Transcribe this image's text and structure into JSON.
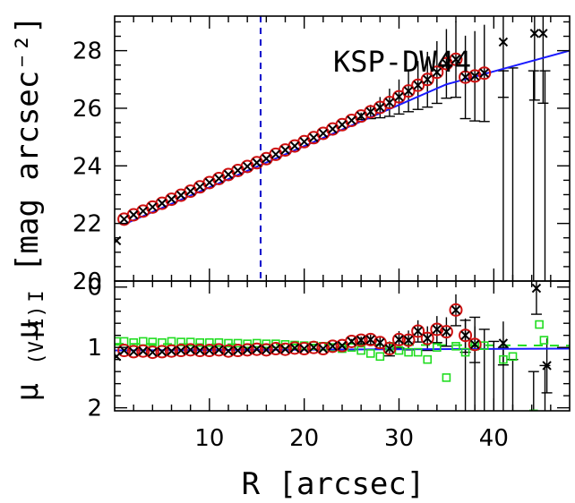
{
  "chart_data": {
    "type": "scatter",
    "title": "",
    "object_label": "KSP-DW44",
    "xlabel": "R [arcsec]",
    "xlim": [
      0,
      48
    ],
    "xticks": [
      10,
      20,
      30,
      40
    ],
    "panels": [
      {
        "id": "top",
        "ylabel_text": "μ",
        "ylabel_sub": "I",
        "ylabel_unit": "[mag arcsec⁻²]",
        "ylim": [
          29.2,
          20
        ],
        "yticks": [
          20,
          22,
          24,
          26,
          28
        ],
        "vline_x": 15.4,
        "fit_line": [
          [
            1,
            21.97
          ],
          [
            35,
            26.83
          ],
          [
            48,
            28.0
          ]
        ],
        "points": [
          [
            1,
            22.15
          ],
          [
            2,
            22.3
          ],
          [
            3,
            22.43
          ],
          [
            4,
            22.57
          ],
          [
            5,
            22.7
          ],
          [
            6,
            22.84
          ],
          [
            7,
            22.98
          ],
          [
            8,
            23.12
          ],
          [
            9,
            23.27
          ],
          [
            10,
            23.42
          ],
          [
            11,
            23.56
          ],
          [
            12,
            23.7
          ],
          [
            13,
            23.84
          ],
          [
            14,
            23.98
          ],
          [
            15,
            24.11
          ],
          [
            16,
            24.25
          ],
          [
            17,
            24.4
          ],
          [
            18,
            24.55
          ],
          [
            19,
            24.69
          ],
          [
            20,
            24.84
          ],
          [
            21,
            24.98
          ],
          [
            22,
            25.13
          ],
          [
            23,
            25.28
          ],
          [
            24,
            25.43
          ],
          [
            25,
            25.58
          ],
          [
            26,
            25.73
          ],
          [
            27,
            25.88
          ],
          [
            28,
            26.03
          ],
          [
            29,
            26.2
          ],
          [
            30,
            26.4
          ],
          [
            31,
            26.6
          ],
          [
            32,
            26.8
          ],
          [
            33,
            27.0
          ],
          [
            34,
            27.25
          ],
          [
            35,
            27.55
          ],
          [
            36,
            27.7
          ],
          [
            37,
            27.08
          ],
          [
            38,
            27.12
          ],
          [
            39,
            27.22
          ]
        ],
        "points_raw": [
          [
            0.2,
            21.4
          ],
          [
            1,
            22.15
          ],
          [
            2,
            22.3
          ],
          [
            3,
            22.43
          ],
          [
            4,
            22.57
          ],
          [
            5,
            22.7
          ],
          [
            6,
            22.84
          ],
          [
            7,
            22.98
          ],
          [
            8,
            23.12
          ],
          [
            9,
            23.27
          ],
          [
            10,
            23.42
          ],
          [
            11,
            23.56
          ],
          [
            12,
            23.7
          ],
          [
            13,
            23.84
          ],
          [
            14,
            23.98
          ],
          [
            15,
            24.11
          ],
          [
            16,
            24.25
          ],
          [
            17,
            24.4
          ],
          [
            18,
            24.55
          ],
          [
            19,
            24.69
          ],
          [
            20,
            24.84
          ],
          [
            21,
            24.98
          ],
          [
            22,
            25.13
          ],
          [
            23,
            25.28
          ],
          [
            24,
            25.43
          ],
          [
            25,
            25.58
          ],
          [
            26,
            25.73
          ],
          [
            27,
            25.88
          ],
          [
            28,
            26.03
          ],
          [
            29,
            26.2
          ],
          [
            30,
            26.4
          ],
          [
            31,
            26.6
          ],
          [
            32,
            26.8
          ],
          [
            33,
            27.0
          ],
          [
            34,
            27.25
          ],
          [
            35,
            27.55
          ],
          [
            36,
            27.7
          ],
          [
            37,
            27.08
          ],
          [
            38,
            27.12
          ],
          [
            39,
            27.22
          ],
          [
            41,
            28.3
          ],
          [
            44.3,
            28.6
          ],
          [
            45.2,
            28.6
          ]
        ]
      },
      {
        "id": "bottom",
        "ylabel_text": "μ",
        "ylabel_sub": "(V−I)",
        "ylim": [
          -0.1,
          2.05
        ],
        "yticks": [
          0,
          1,
          2
        ],
        "fit_line": [
          [
            0,
            1.05
          ],
          [
            48,
            1.02
          ]
        ],
        "dashed_line": [
          [
            0,
            0.94
          ],
          [
            48,
            0.97
          ]
        ],
        "points": [
          [
            1,
            1.05
          ],
          [
            2,
            1.07
          ],
          [
            3,
            1.06
          ],
          [
            4,
            1.08
          ],
          [
            5,
            1.07
          ],
          [
            6,
            1.06
          ],
          [
            7,
            1.05
          ],
          [
            8,
            1.04
          ],
          [
            9,
            1.05
          ],
          [
            10,
            1.05
          ],
          [
            11,
            1.04
          ],
          [
            12,
            1.06
          ],
          [
            13,
            1.05
          ],
          [
            14,
            1.04
          ],
          [
            15,
            1.03
          ],
          [
            16,
            1.04
          ],
          [
            17,
            1.02
          ],
          [
            18,
            1.03
          ],
          [
            19,
            1.01
          ],
          [
            20,
            1.02
          ],
          [
            21,
            1.0
          ],
          [
            22,
            1.02
          ],
          [
            23,
            0.98
          ],
          [
            24,
            0.97
          ],
          [
            25,
            0.9
          ],
          [
            26,
            0.88
          ],
          [
            27,
            0.87
          ],
          [
            28,
            0.92
          ],
          [
            29,
            1.02
          ],
          [
            30,
            0.87
          ],
          [
            31,
            0.88
          ],
          [
            32,
            0.73
          ],
          [
            33,
            0.85
          ],
          [
            34,
            0.7
          ],
          [
            35,
            0.74
          ],
          [
            36,
            0.38
          ],
          [
            37,
            0.8
          ],
          [
            38,
            0.95
          ]
        ],
        "points_raw": [
          [
            0.2,
            1.15
          ],
          [
            1,
            1.05
          ],
          [
            2,
            1.07
          ],
          [
            3,
            1.06
          ],
          [
            4,
            1.08
          ],
          [
            5,
            1.07
          ],
          [
            6,
            1.06
          ],
          [
            7,
            1.05
          ],
          [
            8,
            1.04
          ],
          [
            9,
            1.05
          ],
          [
            10,
            1.05
          ],
          [
            11,
            1.04
          ],
          [
            12,
            1.06
          ],
          [
            13,
            1.05
          ],
          [
            14,
            1.04
          ],
          [
            15,
            1.03
          ],
          [
            16,
            1.04
          ],
          [
            17,
            1.02
          ],
          [
            18,
            1.03
          ],
          [
            19,
            1.01
          ],
          [
            20,
            1.02
          ],
          [
            21,
            1.0
          ],
          [
            22,
            1.02
          ],
          [
            23,
            0.98
          ],
          [
            24,
            0.97
          ],
          [
            25,
            0.9
          ],
          [
            26,
            0.88
          ],
          [
            27,
            0.87
          ],
          [
            28,
            0.92
          ],
          [
            29,
            1.02
          ],
          [
            30,
            0.87
          ],
          [
            31,
            0.88
          ],
          [
            32,
            0.73
          ],
          [
            33,
            0.85
          ],
          [
            34,
            0.7
          ],
          [
            35,
            0.74
          ],
          [
            36,
            0.38
          ],
          [
            37,
            0.8
          ],
          [
            38,
            0.95
          ],
          [
            41,
            0.93
          ],
          [
            44.5,
            0.02
          ],
          [
            45.6,
            1.3
          ]
        ],
        "points_green": [
          [
            0.2,
            0.9
          ],
          [
            1,
            0.9
          ],
          [
            2,
            0.92
          ],
          [
            3,
            0.9
          ],
          [
            4,
            0.91
          ],
          [
            5,
            0.92
          ],
          [
            6,
            0.9
          ],
          [
            7,
            0.91
          ],
          [
            8,
            0.91
          ],
          [
            9,
            0.92
          ],
          [
            10,
            0.92
          ],
          [
            11,
            0.92
          ],
          [
            12,
            0.93
          ],
          [
            13,
            0.93
          ],
          [
            14,
            0.94
          ],
          [
            15,
            0.93
          ],
          [
            16,
            0.94
          ],
          [
            17,
            0.94
          ],
          [
            18,
            0.95
          ],
          [
            19,
            0.96
          ],
          [
            20,
            0.97
          ],
          [
            21,
            0.97
          ],
          [
            22,
            0.98
          ],
          [
            23,
            1.0
          ],
          [
            24,
            1.02
          ],
          [
            25,
            1.0
          ],
          [
            26,
            1.05
          ],
          [
            27,
            1.1
          ],
          [
            28,
            1.15
          ],
          [
            29,
            0.98
          ],
          [
            30,
            1.05
          ],
          [
            31,
            1.08
          ],
          [
            32,
            1.08
          ],
          [
            33,
            1.2
          ],
          [
            34,
            1.0
          ],
          [
            35,
            1.5
          ],
          [
            36,
            0.98
          ],
          [
            37,
            1.08
          ],
          [
            38,
            0.98
          ],
          [
            39,
            0.97
          ],
          [
            41,
            1.2
          ],
          [
            42,
            1.15
          ],
          [
            44.2,
            2.1
          ],
          [
            44.8,
            0.62
          ],
          [
            45.3,
            0.88
          ]
        ],
        "errorbars": [
          [
            37,
            0.55
          ],
          [
            38,
            0.5
          ],
          [
            39,
            0.7
          ],
          [
            40,
            0.9
          ],
          [
            41,
            1.0
          ],
          [
            42,
            1.2
          ],
          [
            44.2,
            1.4
          ],
          [
            45.4,
            1.3
          ]
        ]
      }
    ],
    "colors": {
      "fit": "#1a1aff",
      "vline": "#0000cc",
      "circle": "#d01010",
      "cross": "#000000",
      "green": "#20dd20"
    }
  }
}
